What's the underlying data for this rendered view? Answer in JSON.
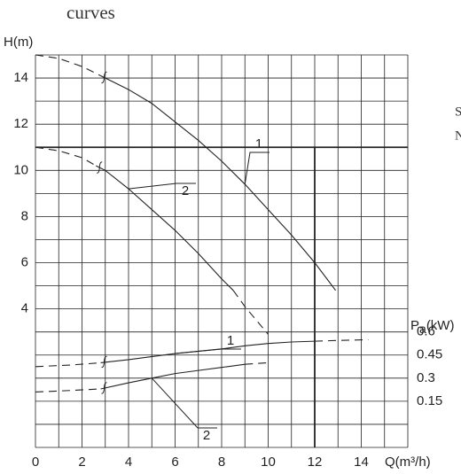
{
  "chart_data": {
    "type": "line",
    "title": "curves",
    "side_text": [
      "S",
      "N"
    ],
    "xlabel": "Q(m³/h)",
    "ylabel": "H(m)",
    "y2label_parts": [
      "P",
      "a",
      "(kW)"
    ],
    "xlim": [
      0,
      16
    ],
    "ylim": [
      -2,
      15
    ],
    "y2lim": [
      -0.15,
      2.4
    ],
    "xticks": [
      0,
      2,
      4,
      6,
      8,
      10,
      12,
      14
    ],
    "yticks": [
      4,
      6,
      8,
      10,
      12,
      14
    ],
    "y2ticks": [
      0.15,
      0.3,
      0.45,
      0.6
    ],
    "x_gridlines": [
      0,
      1,
      2,
      3,
      4,
      5,
      6,
      7,
      8,
      9,
      10,
      11,
      12,
      13,
      14,
      15,
      16
    ],
    "y_gridlines": [
      -2,
      -1,
      0,
      1,
      2,
      3,
      4,
      5,
      6,
      7,
      8,
      9,
      10,
      11,
      12,
      13,
      14,
      15
    ],
    "reference_lines": [
      {
        "axis": "y",
        "value": 11
      },
      {
        "axis": "x",
        "value": 12
      }
    ],
    "color": "#222222",
    "series": [
      {
        "style": "dashed",
        "axis": "y",
        "x": [
          0,
          1,
          2,
          2.8
        ],
        "values": [
          15,
          14.85,
          14.5,
          14.1
        ]
      },
      {
        "name": "1",
        "style": "solid",
        "axis": "y",
        "x": [
          2.8,
          4,
          5,
          6,
          7,
          8,
          9,
          10,
          11,
          12,
          12.9
        ],
        "values": [
          14.1,
          13.5,
          12.9,
          12.1,
          11.3,
          10.4,
          9.4,
          8.3,
          7.2,
          6.0,
          4.8
        ]
      },
      {
        "style": "dashed",
        "axis": "y",
        "x": [
          0,
          1,
          2,
          2.6
        ],
        "values": [
          11,
          10.85,
          10.55,
          10.2
        ]
      },
      {
        "name": "2",
        "style": "solid",
        "axis": "y",
        "x": [
          2.6,
          3,
          4,
          5,
          6,
          7,
          8,
          8.5
        ],
        "values": [
          10.2,
          10.0,
          9.2,
          8.3,
          7.4,
          6.4,
          5.3,
          4.8
        ]
      },
      {
        "style": "dashed",
        "axis": "y",
        "x": [
          8.5,
          9,
          9.5,
          10
        ],
        "values": [
          4.8,
          4.1,
          3.5,
          2.9
        ]
      },
      {
        "style": "dashed",
        "axis": "y2",
        "x": [
          0,
          1.5,
          2.8
        ],
        "values": [
          0.375,
          0.385,
          0.4
        ]
      },
      {
        "name": "1",
        "style": "solid",
        "axis": "y2",
        "x": [
          2.8,
          4,
          6,
          8,
          9,
          10,
          11,
          12
        ],
        "values": [
          0.4,
          0.42,
          0.46,
          0.49,
          0.51,
          0.525,
          0.535,
          0.54
        ]
      },
      {
        "style": "dashed",
        "axis": "y2",
        "x": [
          12,
          13,
          14.3
        ],
        "values": [
          0.54,
          0.545,
          0.55
        ]
      },
      {
        "style": "dashed",
        "axis": "y2",
        "x": [
          0,
          1.5,
          2.8
        ],
        "values": [
          0.21,
          0.22,
          0.23
        ]
      },
      {
        "name": "2",
        "style": "solid",
        "axis": "y2",
        "x": [
          2.8,
          4,
          5,
          6,
          7,
          8,
          9
        ],
        "values": [
          0.23,
          0.27,
          0.3,
          0.33,
          0.35,
          0.37,
          0.39
        ]
      },
      {
        "style": "dashed",
        "axis": "y2",
        "x": [
          9,
          10
        ],
        "values": [
          0.39,
          0.4
        ]
      }
    ]
  }
}
